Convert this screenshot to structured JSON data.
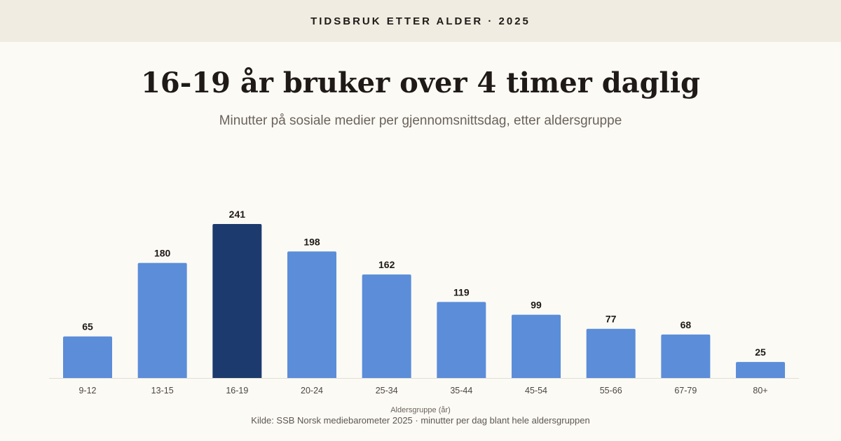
{
  "header": {
    "kicker": "TIDSBRUK ETTER ALDER · 2025",
    "title": "16-19 år bruker over 4 timer daglig",
    "subtitle": "Minutter på sosiale medier per gjennomsnittsdag, etter aldersgruppe"
  },
  "footer": {
    "source": "Kilde: SSB Norsk mediebarometer 2025 · minutter per dag blant hele aldersgruppen"
  },
  "colors": {
    "bar": "#5b8dd9",
    "highlight": "#1d3a6e",
    "baseline": "#e2ddd2"
  },
  "chart_data": {
    "type": "bar",
    "categories": [
      "9-12",
      "13-15",
      "16-19",
      "20-24",
      "25-34",
      "35-44",
      "45-54",
      "55-66",
      "67-79",
      "80+"
    ],
    "values": [
      65,
      180,
      241,
      198,
      162,
      119,
      99,
      77,
      68,
      25
    ],
    "highlight_category": "16-19",
    "title": "16-19 år bruker over 4 timer daglig",
    "subtitle": "Minutter på sosiale medier per gjennomsnittsdag, etter aldersgruppe",
    "xlabel": "Aldersgruppe (år)",
    "ylabel": "",
    "ylim": [
      0,
      241
    ],
    "grid": false,
    "legend": "none",
    "data_labels": true
  }
}
